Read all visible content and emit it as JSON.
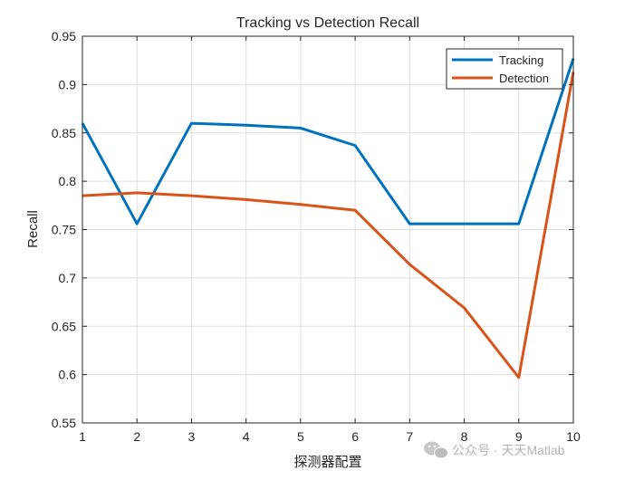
{
  "chart_data": {
    "type": "line",
    "title": "Tracking vs Detection Recall",
    "xlabel": "探测器配置",
    "ylabel": "Recall",
    "x": [
      1,
      2,
      3,
      4,
      5,
      6,
      7,
      8,
      9,
      10
    ],
    "xlim": [
      1,
      10
    ],
    "ylim": [
      0.55,
      0.95
    ],
    "xticks": [
      1,
      2,
      3,
      4,
      5,
      6,
      7,
      8,
      9,
      10
    ],
    "yticks": [
      0.55,
      0.6,
      0.65,
      0.7,
      0.75,
      0.8,
      0.85,
      0.9,
      0.95
    ],
    "grid": true,
    "legend_position": "top-right",
    "series": [
      {
        "name": "Tracking",
        "color": "#0072BD",
        "values": [
          0.86,
          0.756,
          0.86,
          0.858,
          0.855,
          0.837,
          0.756,
          0.756,
          0.756,
          0.927
        ]
      },
      {
        "name": "Detection",
        "color": "#D95319",
        "values": [
          0.785,
          0.788,
          0.785,
          0.781,
          0.776,
          0.77,
          0.714,
          0.669,
          0.597,
          0.913
        ]
      }
    ]
  },
  "watermark": {
    "text": "公众号 · 天天Matlab",
    "icon": "wechat-icon"
  }
}
